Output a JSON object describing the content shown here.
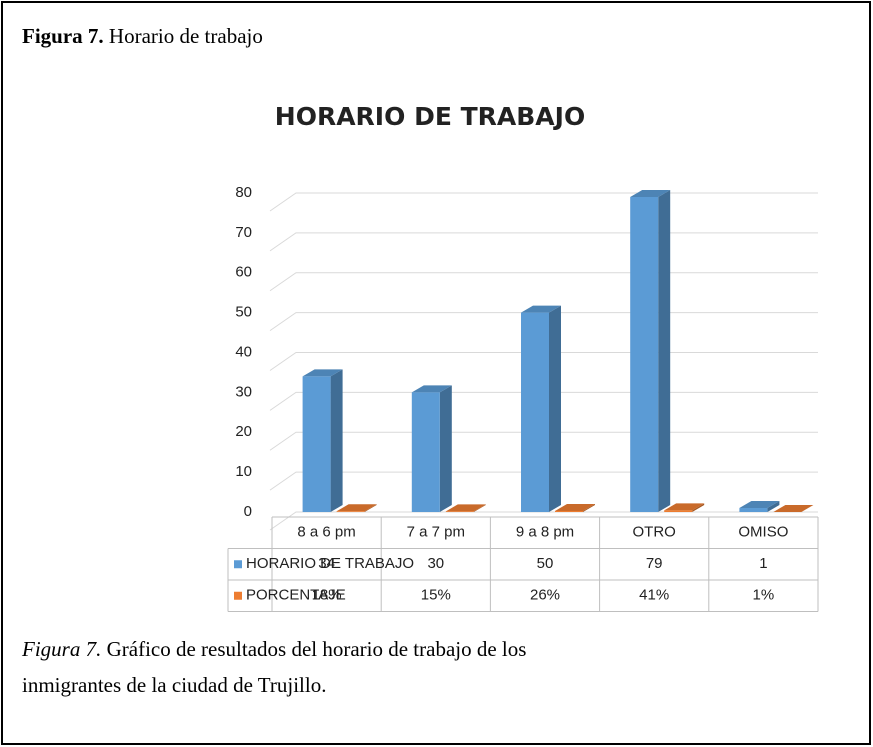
{
  "heading": {
    "label": "Figura 7.",
    "text": "Horario de trabajo"
  },
  "caption": {
    "label": "Figura 7.",
    "lines": [
      "Gráfico de resultados del horario de trabajo de los",
      "inmigrantes de la ciudad de Trujillo."
    ]
  },
  "chart_data": {
    "type": "bar3d",
    "title": "HORARIO DE TRABAJO",
    "categories": [
      "8 a 6 pm",
      "7 a 7 pm",
      "9 a 8 pm",
      "OTRO",
      "OMISO"
    ],
    "series": [
      {
        "name": "HORARIO DE TRABAJO",
        "color": "#5b9bd5",
        "values": [
          34,
          30,
          50,
          79,
          1
        ]
      },
      {
        "name": "PORCENTAJE",
        "color": "#ed7d31",
        "values": [
          0.18,
          0.15,
          0.26,
          0.41,
          0.01
        ],
        "value_labels": [
          "18%",
          "15%",
          "26%",
          "41%",
          "1%"
        ]
      }
    ],
    "ylim": [
      0,
      80
    ],
    "yticks": [
      0,
      10,
      20,
      30,
      40,
      50,
      60,
      70,
      80
    ],
    "grid": true,
    "legend": "table"
  }
}
